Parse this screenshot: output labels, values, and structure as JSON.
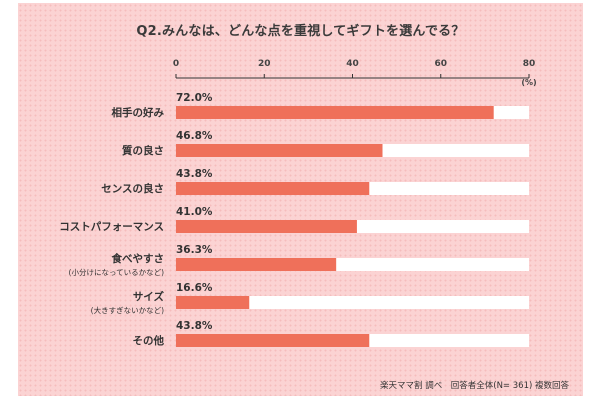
{
  "chart_data": {
    "type": "bar",
    "orientation": "horizontal",
    "title": "Q2.みんなは、どんな点を重視してギフトを選んでる？",
    "unit_label": "(%)",
    "xlim": [
      0,
      80
    ],
    "ticks": [
      "0",
      "20",
      "40",
      "60",
      "80"
    ],
    "categories": [
      {
        "label": "相手の好み",
        "sub": ""
      },
      {
        "label": "質の良さ",
        "sub": ""
      },
      {
        "label": "センスの良さ",
        "sub": ""
      },
      {
        "label": "コストパフォーマンス",
        "sub": ""
      },
      {
        "label": "食べやすさ",
        "sub": "(小分けになっているかなど)"
      },
      {
        "label": "サイズ",
        "sub": "(大きすぎないかなど)"
      },
      {
        "label": "その他",
        "sub": ""
      }
    ],
    "values": [
      72.0,
      46.8,
      43.8,
      41.0,
      36.3,
      16.6,
      43.8
    ],
    "value_labels": [
      "72.0%",
      "46.8%",
      "43.8%",
      "41.0%",
      "36.3%",
      "16.6%",
      "43.8%"
    ],
    "bar_color": "#ef705a",
    "track_color": "#ffffff",
    "background_color": "#fbd3d3",
    "grid": false,
    "legend": "none"
  },
  "footnote": "楽天ママ割 調べ　回答者全体(N= 361) 複数回答"
}
